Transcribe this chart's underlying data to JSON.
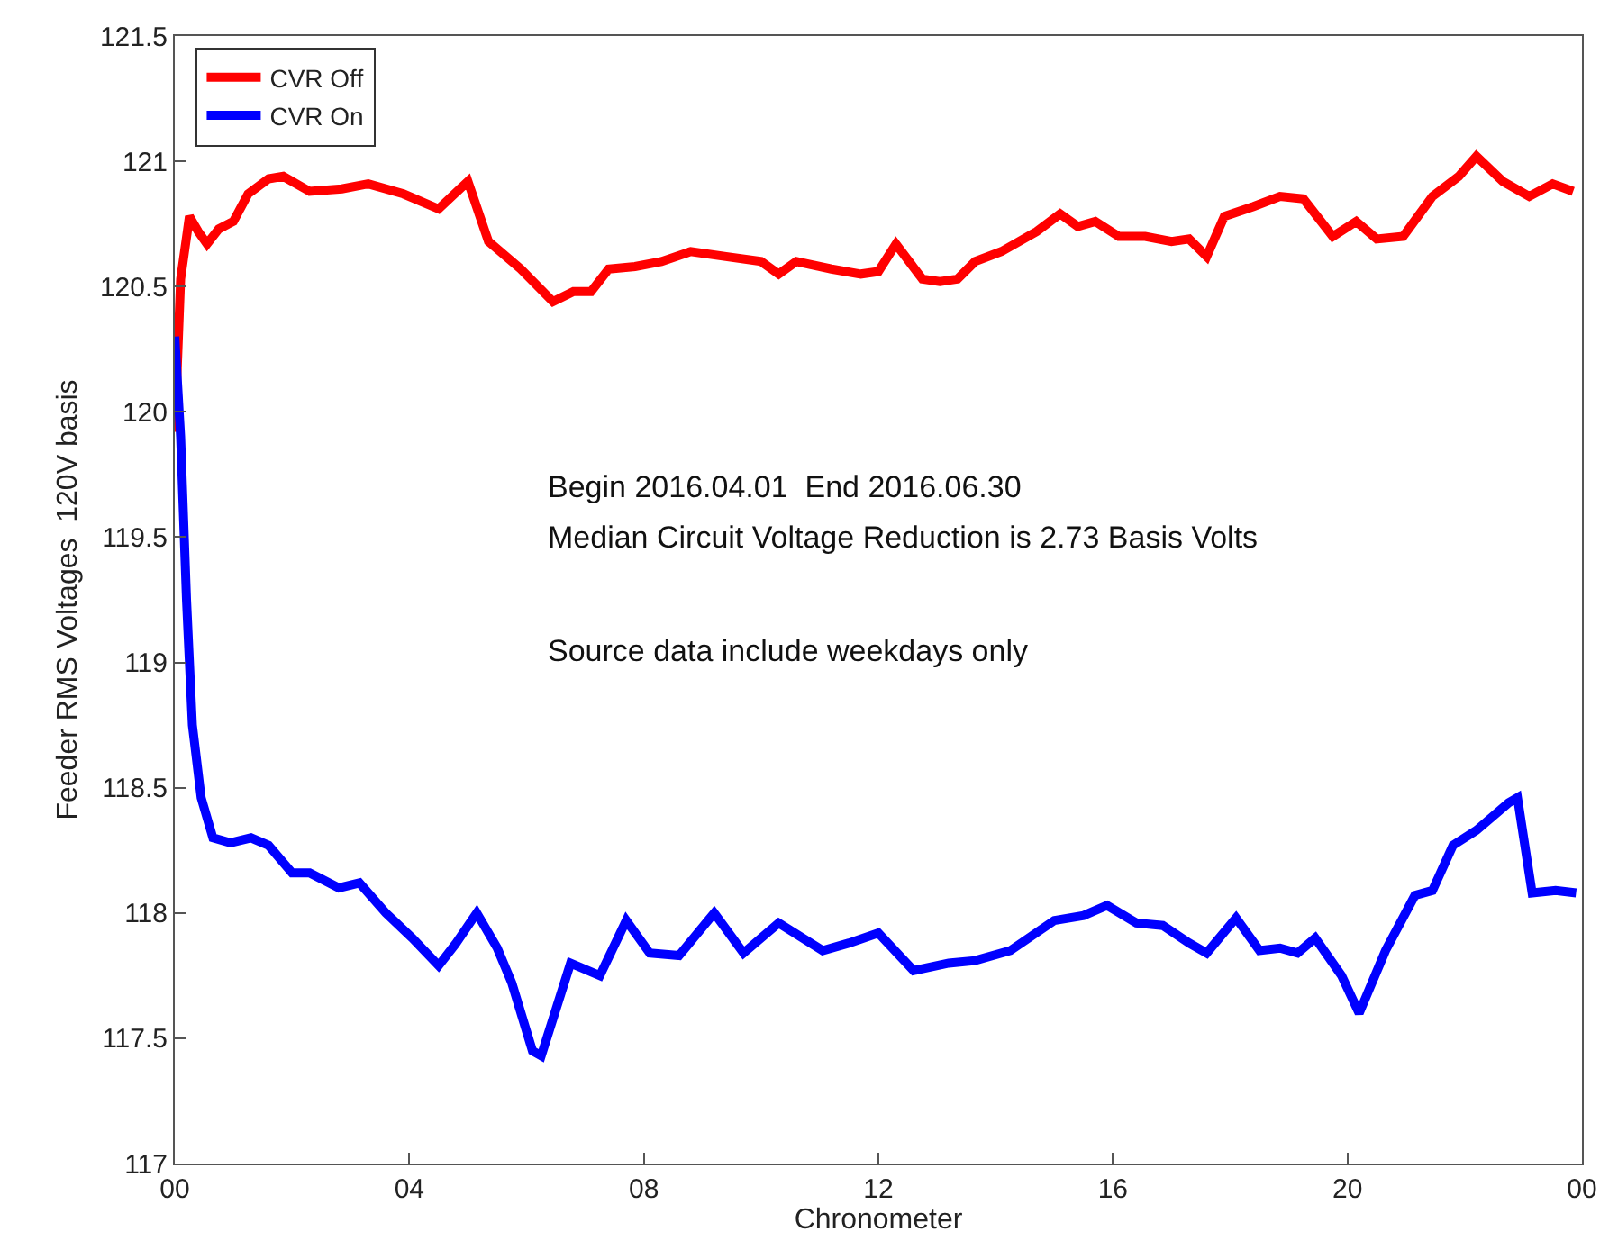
{
  "chart_data": {
    "type": "line",
    "xlabel": "Chronometer",
    "ylabel": "Feeder RMS Voltages  120V basis",
    "xlim": [
      0,
      24
    ],
    "xticks": [
      {
        "value": 0,
        "label": "00"
      },
      {
        "value": 4,
        "label": "04"
      },
      {
        "value": 8,
        "label": "08"
      },
      {
        "value": 12,
        "label": "12"
      },
      {
        "value": 16,
        "label": "16"
      },
      {
        "value": 20,
        "label": "20"
      },
      {
        "value": 24,
        "label": "00"
      }
    ],
    "ylim": [
      117,
      121.5
    ],
    "yticks": [
      117,
      117.5,
      118,
      118.5,
      119,
      119.5,
      120,
      120.5,
      121,
      121.5
    ],
    "legend": "top left",
    "line_style": "solid",
    "marker": "none",
    "annotations": [
      "Begin 2016.04.01  End 2016.06.30",
      "Median Circuit Voltage Reduction is 2.73 Basis Volts",
      "Source data include weekdays only"
    ],
    "series": [
      {
        "name": "CVR Off",
        "color": "#ff0000",
        "x": [
          0,
          0.1,
          0.25,
          0.4,
          0.55,
          0.75,
          1.0,
          1.25,
          1.6,
          1.85,
          2.3,
          2.85,
          3.3,
          3.9,
          4.5,
          5.0,
          5.35,
          5.9,
          6.45,
          6.8,
          7.1,
          7.4,
          7.85,
          8.3,
          8.8,
          9.4,
          10,
          10.3,
          10.6,
          11.2,
          11.7,
          12,
          12.3,
          12.75,
          13.05,
          13.35,
          13.65,
          14.1,
          14.7,
          15.1,
          15.4,
          15.7,
          16.1,
          16.55,
          17,
          17.3,
          17.6,
          17.9,
          18.4,
          18.85,
          19.25,
          19.75,
          20.15,
          20.5,
          20.95,
          21.45,
          21.9,
          22.2,
          22.65,
          23.1,
          23.5,
          23.85
        ],
        "values": [
          119.92,
          120.53,
          120.78,
          120.72,
          120.67,
          120.73,
          120.76,
          120.87,
          120.93,
          120.94,
          120.88,
          120.89,
          120.91,
          120.87,
          120.81,
          120.92,
          120.68,
          120.57,
          120.44,
          120.48,
          120.48,
          120.57,
          120.58,
          120.6,
          120.64,
          120.62,
          120.6,
          120.55,
          120.6,
          120.57,
          120.55,
          120.56,
          120.67,
          120.53,
          120.52,
          120.53,
          120.6,
          120.64,
          120.72,
          120.79,
          120.74,
          120.76,
          120.7,
          120.7,
          120.68,
          120.69,
          120.62,
          120.78,
          120.82,
          120.86,
          120.85,
          120.7,
          120.76,
          120.69,
          120.7,
          120.86,
          120.94,
          121.02,
          120.92,
          120.86,
          120.91,
          120.88
        ]
      },
      {
        "name": "CVR On",
        "color": "#0000ff",
        "x": [
          0,
          0.1,
          0.2,
          0.3,
          0.45,
          0.65,
          0.95,
          1.3,
          1.6,
          2.0,
          2.3,
          2.8,
          3.15,
          3.6,
          4.05,
          4.5,
          4.8,
          5.15,
          5.5,
          5.75,
          6.1,
          6.25,
          6.75,
          7.25,
          7.7,
          8.1,
          8.6,
          9.2,
          9.7,
          10.3,
          11.05,
          11.5,
          12,
          12.6,
          13.2,
          13.65,
          14.25,
          15,
          15.5,
          15.9,
          16.4,
          16.85,
          17.3,
          17.6,
          18.1,
          18.5,
          18.85,
          19.15,
          19.45,
          19.9,
          20.2,
          20.65,
          21.15,
          21.45,
          21.8,
          22.2,
          22.75,
          22.9,
          23.15,
          23.55,
          23.9
        ],
        "values": [
          120.3,
          119.9,
          119.25,
          118.75,
          118.46,
          118.3,
          118.28,
          118.3,
          118.27,
          118.16,
          118.16,
          118.1,
          118.12,
          118.0,
          117.9,
          117.79,
          117.88,
          118.0,
          117.86,
          117.72,
          117.45,
          117.43,
          117.8,
          117.75,
          117.97,
          117.84,
          117.83,
          118.0,
          117.84,
          117.96,
          117.85,
          117.88,
          117.92,
          117.77,
          117.8,
          117.81,
          117.85,
          117.97,
          117.99,
          118.03,
          117.96,
          117.95,
          117.88,
          117.84,
          117.98,
          117.85,
          117.86,
          117.84,
          117.9,
          117.75,
          117.6,
          117.85,
          118.07,
          118.09,
          118.27,
          118.33,
          118.44,
          118.46,
          118.08,
          118.09,
          118.08
        ]
      }
    ]
  }
}
